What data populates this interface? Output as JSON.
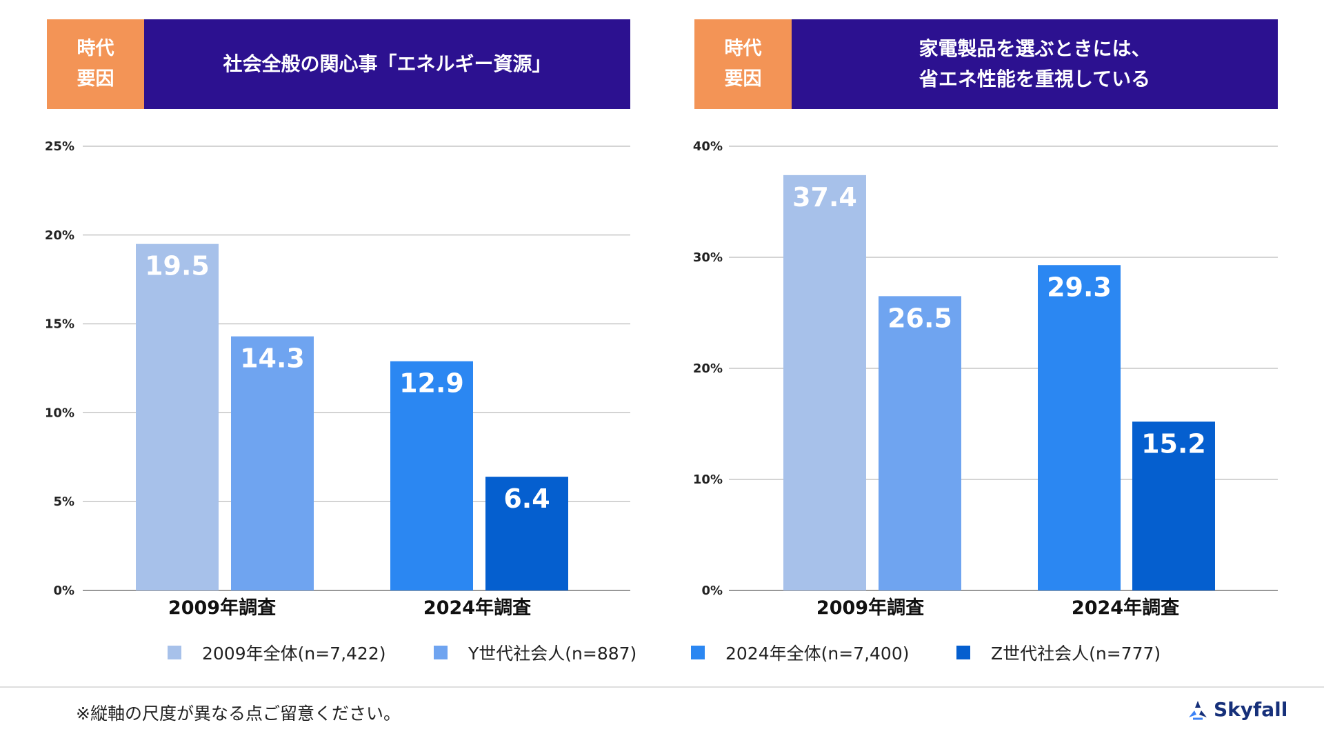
{
  "panels": {
    "left": {
      "tag_line1": "時代",
      "tag_line2": "要因",
      "title_line1": "社会全般の関心事「エネルギー資源」",
      "title_line2": ""
    },
    "right": {
      "tag_line1": "時代",
      "tag_line2": "要因",
      "title_line1": "家電製品を選ぶときには、",
      "title_line2": "省エネ性能を重視している"
    }
  },
  "chart_data": [
    {
      "type": "bar",
      "title": "社会全般の関心事「エネルギー資源」",
      "categories": [
        "2009年調査",
        "2024年調査"
      ],
      "series": [
        {
          "name": "2009年全体(n=7,422)",
          "values": [
            19.5,
            null
          ]
        },
        {
          "name": "Y世代社会人(n=887)",
          "values": [
            14.3,
            null
          ]
        },
        {
          "name": "2024年全体(n=7,400)",
          "values": [
            null,
            12.9
          ]
        },
        {
          "name": "Z世代社会人(n=777)",
          "values": [
            null,
            6.4
          ]
        }
      ],
      "ylim": [
        0,
        25
      ],
      "yticks": [
        0,
        5,
        10,
        15,
        20,
        25
      ],
      "ytick_labels": [
        "0%",
        "5%",
        "10%",
        "15%",
        "20%",
        "25%"
      ],
      "xlabel": "",
      "ylabel": ""
    },
    {
      "type": "bar",
      "title": "家電製品を選ぶときには、省エネ性能を重視している",
      "categories": [
        "2009年調査",
        "2024年調査"
      ],
      "series": [
        {
          "name": "2009年全体(n=7,422)",
          "values": [
            37.4,
            null
          ]
        },
        {
          "name": "Y世代社会人(n=887)",
          "values": [
            26.5,
            null
          ]
        },
        {
          "name": "2024年全体(n=7,400)",
          "values": [
            null,
            29.3
          ]
        },
        {
          "name": "Z世代社会人(n=777)",
          "values": [
            null,
            15.2
          ]
        }
      ],
      "ylim": [
        0,
        40
      ],
      "yticks": [
        0,
        10,
        20,
        30,
        40
      ],
      "ytick_labels": [
        "0%",
        "10%",
        "20%",
        "30%",
        "40%"
      ],
      "xlabel": "",
      "ylabel": ""
    }
  ],
  "legend": [
    {
      "label": "2009年全体(n=7,422)",
      "color": "#a7c1ea"
    },
    {
      "label": "Y世代社会人(n=887)",
      "color": "#6fa4f0"
    },
    {
      "label": "2024年全体(n=7,400)",
      "color": "#2b87f2"
    },
    {
      "label": "Z世代社会人(n=777)",
      "color": "#055fcf"
    }
  ],
  "footnote": "※縦軸の尺度が異なる点ご留意ください。",
  "brand": {
    "name": "Skyfall"
  },
  "colors": {
    "tag": "#f39456",
    "title_bg": "#2c1190",
    "grid": "#999999",
    "brand": "#16307a"
  }
}
